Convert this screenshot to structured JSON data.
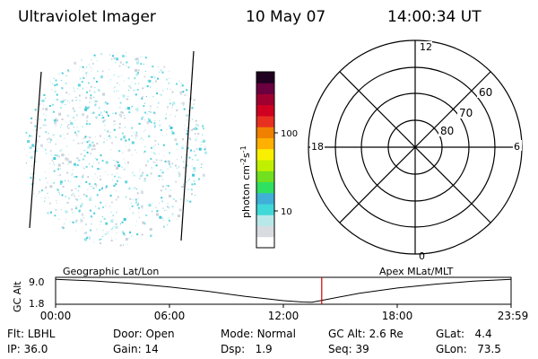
{
  "header": {
    "instrument": "Ultraviolet Imager",
    "date": "10 May 07",
    "time": "14:00:34 UT"
  },
  "colorbar": {
    "label": "photon cm",
    "label_sup1": "-2",
    "label_mid": "s",
    "label_sup2": "-1",
    "ticks": [
      "100",
      "10"
    ],
    "colors": [
      "#ffffff",
      "#d8dce0",
      "#b8e8ea",
      "#40d8d8",
      "#40b0d8",
      "#30e060",
      "#70e020",
      "#c0f000",
      "#f8f000",
      "#ffb000",
      "#f08000",
      "#e83020",
      "#d00020",
      "#a00030",
      "#6a0040",
      "#200020"
    ]
  },
  "polar_plot": {
    "mlt_labels": {
      "top": "12",
      "bottom": "0",
      "left": "18",
      "right": "6"
    },
    "lat_labels": [
      "60",
      "70",
      "80"
    ]
  },
  "timeline": {
    "left_title": "Geographic Lat/Lon",
    "right_title": "Apex MLat/MLT",
    "ylabel": "GC Alt",
    "yticks": [
      "9.0",
      "1.8"
    ],
    "xticks": [
      "00:00",
      "06:00",
      "12:00",
      "18:00",
      "23:59"
    ],
    "marker_color": "#cc0000",
    "curve": [
      [
        0,
        8.9
      ],
      [
        2,
        8.4
      ],
      [
        4,
        7.6
      ],
      [
        6,
        6.5
      ],
      [
        8,
        5.2
      ],
      [
        10,
        3.6
      ],
      [
        12,
        2.3
      ],
      [
        13,
        1.9
      ],
      [
        13.5,
        1.8
      ],
      [
        14,
        2.4
      ],
      [
        16,
        4.6
      ],
      [
        18,
        6.2
      ],
      [
        20,
        7.4
      ],
      [
        22,
        8.3
      ],
      [
        23.98,
        8.9
      ]
    ],
    "current_time_hours": 14.01
  },
  "status": {
    "row1": [
      {
        "label": "Flt:",
        "value": "LBHL"
      },
      {
        "label": "Door:",
        "value": "Open"
      },
      {
        "label": "Mode:",
        "value": "Normal"
      },
      {
        "label": "GC Alt:",
        "value": "2.6 Re"
      },
      {
        "label": "GLat:",
        "value": "4.4"
      }
    ],
    "row2": [
      {
        "label": "IP:",
        "value": "36.0"
      },
      {
        "label": "Gain:",
        "value": "14"
      },
      {
        "label": "Dsp:",
        "value": "1.9"
      },
      {
        "label": "Seq:",
        "value": "39"
      },
      {
        "label": "GLon:",
        "value": "73.5"
      }
    ]
  },
  "image_panel": {
    "speckle_colors": [
      "#8ee0e6",
      "#b4ecee",
      "#d6dde4",
      "#c9d0d8",
      "#5fd6de",
      "#40c8d8"
    ]
  }
}
